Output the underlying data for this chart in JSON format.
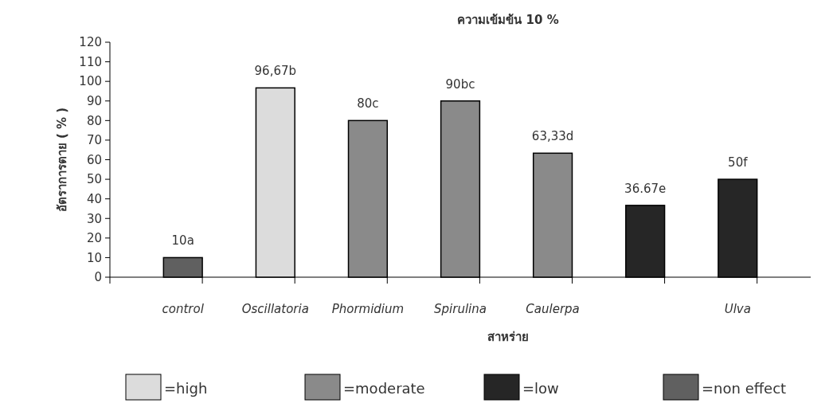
{
  "chart_data": {
    "type": "bar",
    "title": "ความเข้มข้น 10 %",
    "xlabel": "สาหร่าย",
    "ylabel": "อัตราการตาย ( % )",
    "categories": [
      "control",
      "Oscillatoria",
      "Phormidium",
      "Spirulina",
      "Caulerpa",
      null,
      "Ulva"
    ],
    "stacked": true,
    "series": [
      {
        "name": "=high",
        "color": "#dcdcdc",
        "values": [
          null,
          96.67,
          null,
          null,
          null,
          null,
          null
        ],
        "value_labels": [
          null,
          "96,67b",
          null,
          null,
          null,
          null,
          null
        ]
      },
      {
        "name": "=moderate",
        "color": "#8a8a8a",
        "values": [
          null,
          null,
          80,
          90,
          63.33,
          null,
          null
        ],
        "value_labels": [
          null,
          null,
          "80c",
          "90bc",
          "63,33d",
          null,
          null
        ]
      },
      {
        "name": "=low",
        "color": "#262626",
        "values": [
          null,
          null,
          null,
          null,
          null,
          36.67,
          50
        ],
        "value_labels": [
          null,
          null,
          null,
          null,
          null,
          "36.67e",
          "50f"
        ]
      },
      {
        "name": "=non effect",
        "color": "#606060",
        "values": [
          10,
          null,
          null,
          null,
          null,
          null,
          null
        ],
        "value_labels": [
          "10a",
          null,
          null,
          null,
          null,
          null,
          null
        ]
      }
    ],
    "ylim": [
      0,
      120
    ],
    "yticks": [
      0,
      10,
      20,
      30,
      40,
      50,
      60,
      70,
      80,
      90,
      100,
      110,
      120
    ],
    "grid": false,
    "legend": "bottom"
  }
}
